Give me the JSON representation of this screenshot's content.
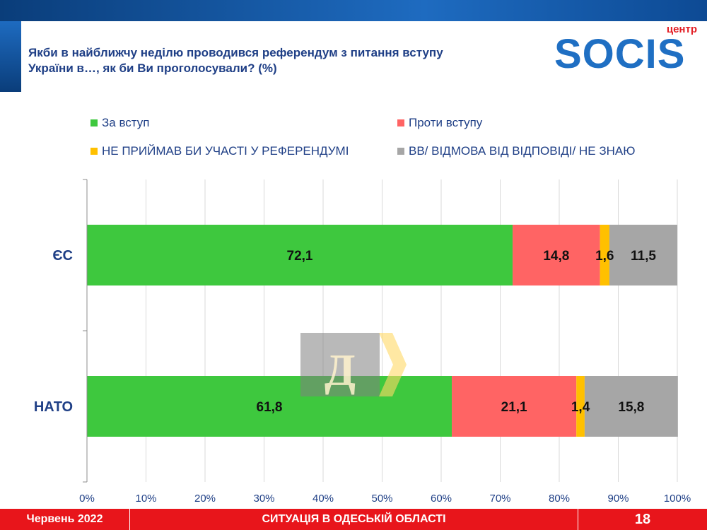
{
  "header": {
    "title_line1": "Якби в найближчу неділю проводився референдум з питання вступу",
    "title_line2": "України в…, як би Ви проголосували? (%)"
  },
  "logo": {
    "small": "центр",
    "main": "SOCIS"
  },
  "watermark": {
    "letter": "Д"
  },
  "colors": {
    "for": "#3ec83e",
    "against": "#ff6464",
    "no_participation": "#ffc000",
    "hard_to_say": "#a6a6a6",
    "brand_blue": "#1f6fc3",
    "footer_red": "#e8151b"
  },
  "chart_data": {
    "type": "bar",
    "orientation": "horizontal",
    "stacked": true,
    "categories": [
      "ЄС",
      "НАТО"
    ],
    "series": [
      {
        "name": "За вступ",
        "values": [
          72.1,
          61.8
        ],
        "color": "#3ec83e"
      },
      {
        "name": "Проти вступу",
        "values": [
          14.8,
          21.1
        ],
        "color": "#ff6464"
      },
      {
        "name": "НЕ ПРИЙМАВ БИ УЧАСТІ У РЕФЕРЕНДУМІ",
        "values": [
          1.6,
          1.4
        ],
        "color": "#ffc000"
      },
      {
        "name": "ВВ/ ВІДМОВА ВІД ВІДПОВІДІ/ НЕ ЗНАЮ",
        "values": [
          11.5,
          15.8
        ],
        "color": "#a6a6a6"
      }
    ],
    "data_labels": [
      [
        "72,1",
        "14,8",
        "1,6",
        "11,5"
      ],
      [
        "61,8",
        "21,1",
        "1,4",
        "15,8"
      ]
    ],
    "xlim": [
      0,
      100
    ],
    "xticks": [
      "0%",
      "10%",
      "20%",
      "30%",
      "40%",
      "50%",
      "60%",
      "70%",
      "80%",
      "90%",
      "100%"
    ],
    "grid": true,
    "legend_position": "top"
  },
  "footer": {
    "date": "Червень 2022",
    "center": "СИТУАЦІЯ В ОДЕСЬКІЙ ОБЛАСТІ",
    "page": "18"
  }
}
